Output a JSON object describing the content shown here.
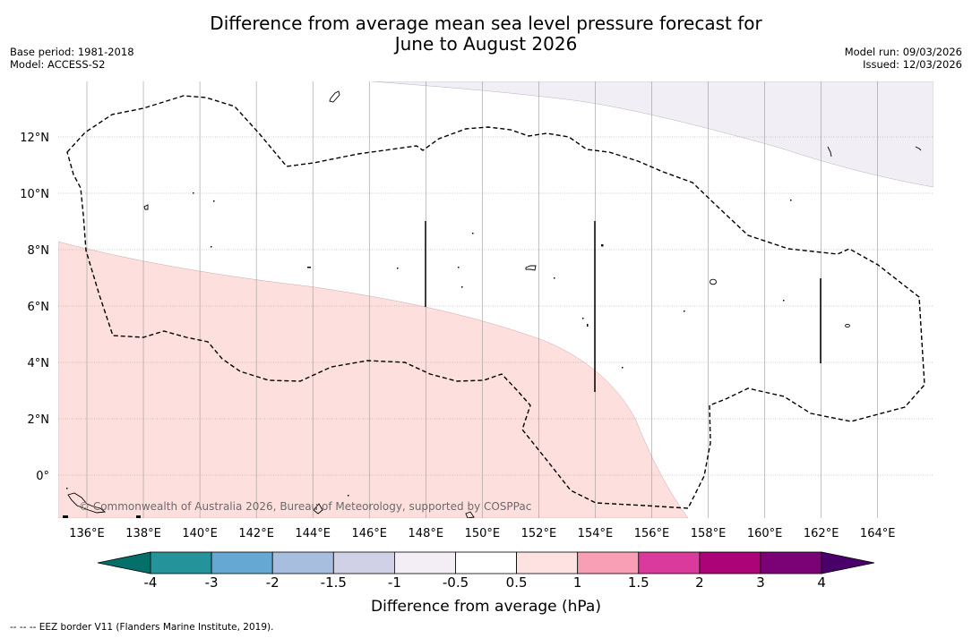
{
  "title": {
    "line1": "Difference from average mean sea level pressure forecast for",
    "line2": "June to August 2026"
  },
  "meta_left": {
    "base_period": "Base period: 1981-2018",
    "model": "Model: ACCESS-S2"
  },
  "meta_right": {
    "model_run": "Model run: 09/03/2026",
    "issued": "Issued: 12/03/2026"
  },
  "map": {
    "lon_labels": [
      "136°E",
      "138°E",
      "140°E",
      "142°E",
      "144°E",
      "146°E",
      "148°E",
      "150°E",
      "152°E",
      "154°E",
      "156°E",
      "158°E",
      "160°E",
      "162°E",
      "164°E"
    ],
    "lat_labels": [
      "12°N",
      "10°N",
      "8°N",
      "6°N",
      "4°N",
      "2°N",
      "0°"
    ],
    "watermark": "© Commonwealth of Australia 2026, Bureau of Meteorology, supported by COSPPac",
    "colors": {
      "positive_anomaly": "#fde0dd",
      "negative_anomaly": "#f2eef5",
      "gridline": "#999999"
    }
  },
  "colorbar": {
    "title": "Difference from average (hPa)",
    "ticks": [
      "-4",
      "-3",
      "-2",
      "-1.5",
      "-1",
      "-0.5",
      "0.5",
      "1",
      "1.5",
      "2",
      "3",
      "4"
    ],
    "colors": [
      "#05706a",
      "#24939a",
      "#64a8d3",
      "#a7bedf",
      "#d0d1e6",
      "#f3eef6",
      "#ffffff",
      "#fde2e1",
      "#f89fb5",
      "#db3a9d",
      "#ad0378",
      "#7a0176",
      "#49006a"
    ]
  },
  "footnote": "--  --  -- EEZ border V11 (Flanders Marine Institute, 2019)."
}
